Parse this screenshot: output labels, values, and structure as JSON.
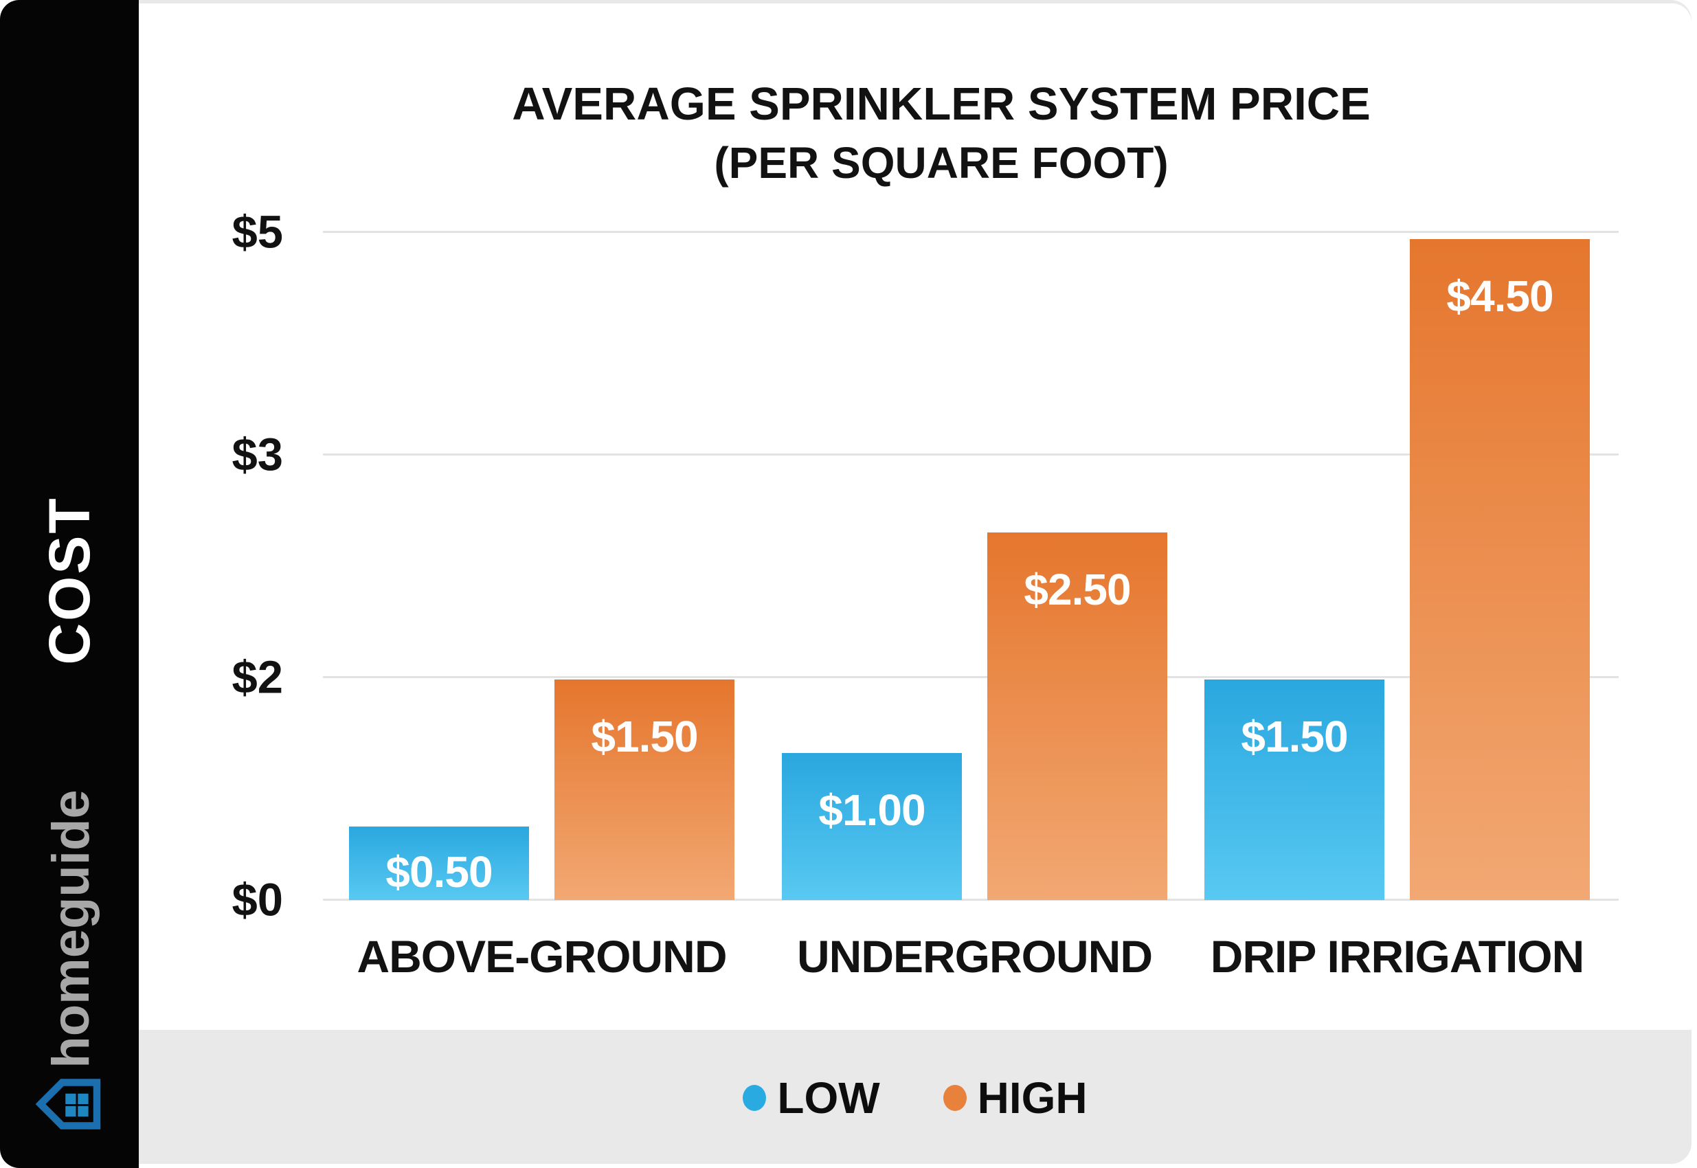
{
  "sidebar": {
    "axis_label": "COST",
    "brand": "homeguide",
    "logo_icon": "homeguide-house-icon",
    "background_color": "#050505",
    "brand_color": "#A7A7A7",
    "logo_stroke_color": "#1B6FAE",
    "logo_window_color": "#1E87C2"
  },
  "chart_data": {
    "type": "bar",
    "title": "AVERAGE SPRINKLER SYSTEM PRICE (PER SQUARE FOOT)",
    "title_lines": [
      "AVERAGE SPRINKLER SYSTEM PRICE",
      "(PER SQUARE FOOT)"
    ],
    "categories": [
      "ABOVE-GROUND",
      "UNDERGROUND",
      "DRIP IRRIGATION"
    ],
    "series": [
      {
        "name": "LOW",
        "color": "#29ABE2",
        "gradient_top": "#2AA7DF",
        "gradient_bottom": "#58C9F2",
        "values": [
          0.5,
          1.0,
          1.5
        ],
        "labels": [
          "$0.50",
          "$1.00",
          "$1.50"
        ]
      },
      {
        "name": "HIGH",
        "color": "#E8813B",
        "gradient_top": "#E5762D",
        "gradient_bottom": "#F2A873",
        "values": [
          1.5,
          2.5,
          4.5
        ],
        "labels": [
          "$1.50",
          "$2.50",
          "$4.50"
        ]
      }
    ],
    "y_axis": {
      "ticks_bottom_to_top": [
        "$0",
        "$2",
        "$3",
        "$5"
      ],
      "tick_values": [
        0,
        2,
        3,
        5
      ],
      "range": [
        0,
        5
      ],
      "currency": "$"
    },
    "grid": true,
    "legend_position": "bottom",
    "gridline_color": "#E3E3E3"
  },
  "legend": {
    "items": [
      {
        "label": "LOW",
        "color": "#29ABE2"
      },
      {
        "label": "HIGH",
        "color": "#E8813B"
      }
    ]
  }
}
